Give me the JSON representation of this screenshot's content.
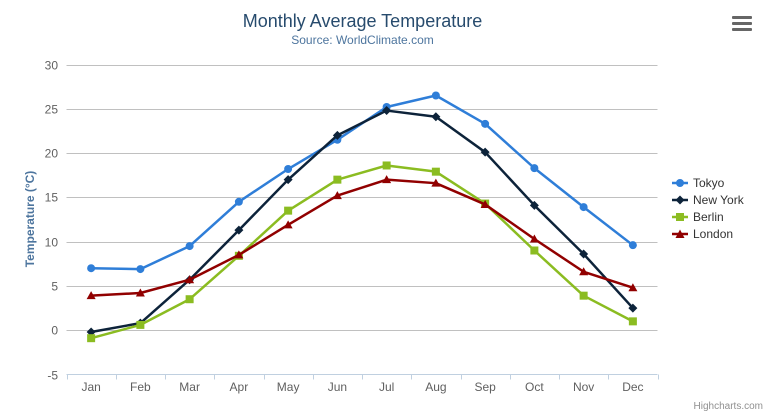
{
  "chart_data": {
    "type": "line",
    "title": "Monthly Average Temperature",
    "subtitle": "Source: WorldClimate.com",
    "xlabel": "",
    "ylabel": "Temperature (°C)",
    "categories": [
      "Jan",
      "Feb",
      "Mar",
      "Apr",
      "May",
      "Jun",
      "Jul",
      "Aug",
      "Sep",
      "Oct",
      "Nov",
      "Dec"
    ],
    "ylim": [
      -5,
      30
    ],
    "ytick_interval": 5,
    "grid": true,
    "legend_position": "right",
    "series": [
      {
        "name": "Tokyo",
        "color": "#2f7ed8",
        "marker": "circle",
        "values": [
          7.0,
          6.9,
          9.5,
          14.5,
          18.2,
          21.5,
          25.2,
          26.5,
          23.3,
          18.3,
          13.9,
          9.6
        ]
      },
      {
        "name": "New York",
        "color": "#0d233a",
        "marker": "diamond",
        "values": [
          -0.2,
          0.8,
          5.7,
          11.3,
          17.0,
          22.0,
          24.8,
          24.1,
          20.1,
          14.1,
          8.6,
          2.5
        ]
      },
      {
        "name": "Berlin",
        "color": "#8bbc21",
        "marker": "square",
        "values": [
          -0.9,
          0.6,
          3.5,
          8.4,
          13.5,
          17.0,
          18.6,
          17.9,
          14.3,
          9.0,
          3.9,
          1.0
        ]
      },
      {
        "name": "London",
        "color": "#910000",
        "marker": "triangle",
        "values": [
          3.9,
          4.2,
          5.7,
          8.5,
          11.9,
          15.2,
          17.0,
          16.6,
          14.2,
          10.3,
          6.6,
          4.8
        ]
      }
    ],
    "colors": {
      "title_text": "#274b6d",
      "subtitle_text": "#4d759e",
      "axis_title_text": "#4d759e",
      "axis_label_text": "#606060",
      "gridline": "#c0c0c0",
      "axis_line": "#c0d0e0",
      "legend_text": "#333333"
    }
  },
  "toolbar": {
    "export_menu_icon": "hamburger-icon"
  },
  "credits": {
    "label": "Highcharts.com"
  }
}
